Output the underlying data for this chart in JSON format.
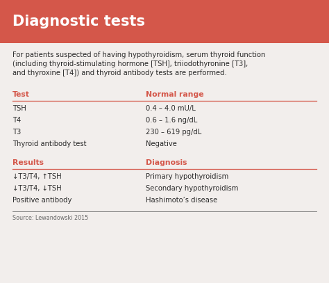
{
  "title": "Diagnostic tests",
  "title_bg_color": "#d4574a",
  "title_text_color": "#ffffff",
  "body_bg_color": "#f2eeec",
  "red_color": "#d4574a",
  "dark_text": "#2b2b2b",
  "light_text": "#666666",
  "intro_text_lines": [
    "For patients suspected of having hypothyroidism, serum thyroid function",
    "(including thyroid-stimulating hormone [TSH], triiodothyronine [T3],",
    "and thyroxine [T4]) and thyroid antibody tests are performed."
  ],
  "col1_header": "Test",
  "col2_header": "Normal range",
  "tests": [
    [
      "TSH",
      "0.4 – 4.0 mU/L"
    ],
    [
      "T4",
      "0.6 – 1.6 ng/dL"
    ],
    [
      "T3",
      "230 – 619 pg/dL"
    ],
    [
      "Thyroid antibody test",
      "Negative"
    ]
  ],
  "col3_header": "Results",
  "col4_header": "Diagnosis",
  "results": [
    [
      "↓T3/T4, ↑TSH",
      "Primary hypothyroidism"
    ],
    [
      "↓T3/T4, ↓TSH",
      "Secondary hypothyroidism"
    ],
    [
      "Positive antibody",
      "Hashimoto’s disease"
    ]
  ],
  "source": "Source: Lewandowski 2015",
  "title_fontsize": 15,
  "header_fontsize": 7.8,
  "body_fontsize": 7.2,
  "source_fontsize": 5.8
}
